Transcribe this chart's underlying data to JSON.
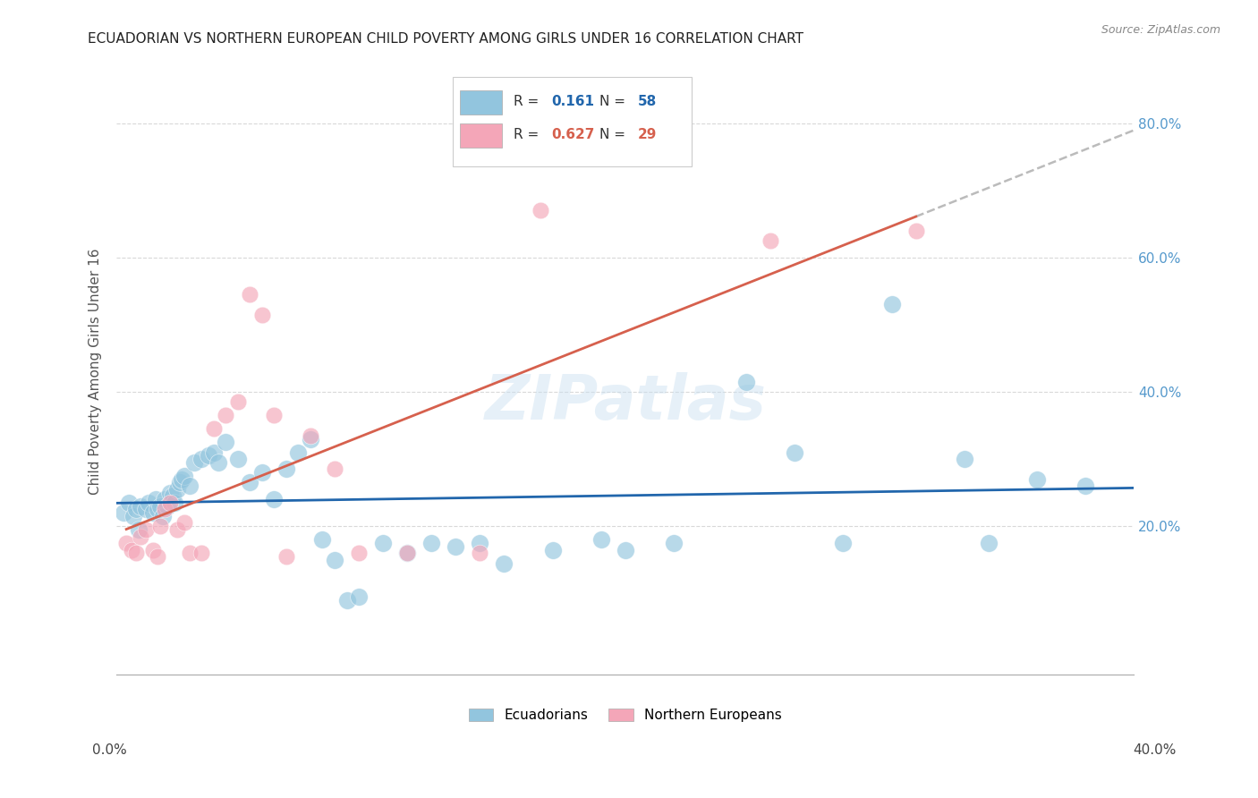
{
  "title": "ECUADORIAN VS NORTHERN EUROPEAN CHILD POVERTY AMONG GIRLS UNDER 16 CORRELATION CHART",
  "source": "Source: ZipAtlas.com",
  "ylabel": "Child Poverty Among Girls Under 16",
  "xlim": [
    0.0,
    0.42
  ],
  "ylim": [
    -0.02,
    0.88
  ],
  "yticks": [
    0.2,
    0.4,
    0.6,
    0.8
  ],
  "color_ecuador": "#92c5de",
  "color_northern": "#f4a6b8",
  "color_trend_ecuador": "#2166ac",
  "color_trend_northern": "#d6604d",
  "color_trend_extrap": "#bbbbbb",
  "background_color": "#ffffff",
  "grid_color": "#d9d9d9",
  "ecuador_x": [
    0.003,
    0.005,
    0.007,
    0.008,
    0.009,
    0.01,
    0.012,
    0.013,
    0.015,
    0.016,
    0.017,
    0.018,
    0.019,
    0.02,
    0.021,
    0.022,
    0.023,
    0.024,
    0.025,
    0.026,
    0.027,
    0.028,
    0.03,
    0.032,
    0.035,
    0.038,
    0.04,
    0.042,
    0.045,
    0.05,
    0.055,
    0.06,
    0.065,
    0.07,
    0.075,
    0.08,
    0.085,
    0.09,
    0.095,
    0.1,
    0.11,
    0.12,
    0.13,
    0.14,
    0.15,
    0.16,
    0.18,
    0.2,
    0.21,
    0.23,
    0.26,
    0.28,
    0.3,
    0.32,
    0.35,
    0.36,
    0.38,
    0.4
  ],
  "ecuador_y": [
    0.22,
    0.235,
    0.215,
    0.225,
    0.195,
    0.23,
    0.225,
    0.235,
    0.22,
    0.24,
    0.225,
    0.23,
    0.215,
    0.24,
    0.23,
    0.25,
    0.245,
    0.235,
    0.255,
    0.265,
    0.27,
    0.275,
    0.26,
    0.295,
    0.3,
    0.305,
    0.31,
    0.295,
    0.325,
    0.3,
    0.265,
    0.28,
    0.24,
    0.285,
    0.31,
    0.33,
    0.18,
    0.15,
    0.09,
    0.095,
    0.175,
    0.16,
    0.175,
    0.17,
    0.175,
    0.145,
    0.165,
    0.18,
    0.165,
    0.175,
    0.415,
    0.31,
    0.175,
    0.53,
    0.3,
    0.175,
    0.27,
    0.26
  ],
  "northern_x": [
    0.004,
    0.006,
    0.008,
    0.01,
    0.012,
    0.015,
    0.017,
    0.018,
    0.02,
    0.022,
    0.025,
    0.028,
    0.03,
    0.035,
    0.04,
    0.045,
    0.05,
    0.055,
    0.06,
    0.065,
    0.07,
    0.08,
    0.09,
    0.1,
    0.12,
    0.15,
    0.175,
    0.27,
    0.33
  ],
  "northern_y": [
    0.175,
    0.165,
    0.16,
    0.185,
    0.195,
    0.165,
    0.155,
    0.2,
    0.225,
    0.235,
    0.195,
    0.205,
    0.16,
    0.16,
    0.345,
    0.365,
    0.385,
    0.545,
    0.515,
    0.365,
    0.155,
    0.335,
    0.285,
    0.16,
    0.16,
    0.16,
    0.67,
    0.625,
    0.64
  ]
}
